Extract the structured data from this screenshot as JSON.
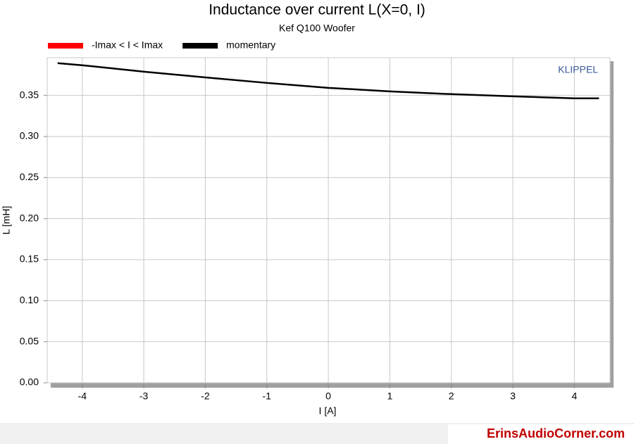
{
  "chart_data": {
    "type": "line",
    "title": "Inductance over current L(X=0, I)",
    "subtitle": "Kef Q100 Woofer",
    "x_label": "I [A]",
    "y_label": "L [mH]",
    "annotation": "KLIPPEL",
    "watermark": "ErinsAudioCorner.com",
    "x": [
      -4.4,
      -4,
      -3,
      -2,
      -1,
      0,
      1,
      2,
      3,
      4,
      4.4
    ],
    "series": [
      {
        "name": "-Imax < I < Imax",
        "color": "#ff0000",
        "values": [
          null,
          null,
          null,
          null,
          null,
          null,
          null,
          null,
          null,
          null,
          null
        ]
      },
      {
        "name": "momentary",
        "color": "#000000",
        "values": [
          0.3894,
          0.3868,
          0.379,
          0.372,
          0.3653,
          0.3593,
          0.355,
          0.3516,
          0.349,
          0.3465,
          0.3465
        ]
      }
    ],
    "xlim": [
      -4.57,
      4.58
    ],
    "ylim": [
      0,
      0.396
    ],
    "xticks": [
      -4,
      -3,
      -2,
      -1,
      0,
      1,
      2,
      3,
      4
    ],
    "yticks": [
      {
        "value": 0,
        "label": "0.00"
      },
      0.05,
      {
        "value": 0.1,
        "label": "0.10"
      },
      0.15,
      {
        "value": 0.2,
        "label": "0.20"
      },
      0.25,
      {
        "value": 0.3,
        "label": "0.30"
      },
      0.35
    ],
    "grid": true
  }
}
